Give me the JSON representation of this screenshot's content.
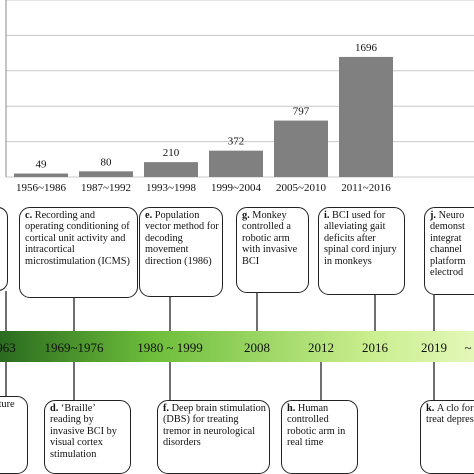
{
  "chart_data": {
    "type": "bar",
    "categories": [
      "1956~1986",
      "1987~1992",
      "1993~1998",
      "1999~2004",
      "2005~2010",
      "2011~2016"
    ],
    "values": [
      49,
      80,
      210,
      372,
      797,
      1696
    ],
    "title": "",
    "xlabel": "",
    "ylabel": "",
    "ylim": [
      0,
      2500
    ],
    "grid": true,
    "bar_color": "#808080"
  },
  "timeline": {
    "band_gradient": [
      "#2a6b1f",
      "#6dbd3a",
      "#c9ee8e",
      "#e3f7b8"
    ],
    "years": [
      {
        "label": "963"
      },
      {
        "label": "1969~1976"
      },
      {
        "label": "1980 ~ 1999"
      },
      {
        "label": "2008"
      },
      {
        "label": "2012"
      },
      {
        "label": "2016"
      },
      {
        "label": "2019"
      },
      {
        "label": "~"
      }
    ],
    "top_events": [
      {
        "letter": "",
        "text": ""
      },
      {
        "letter": "c.",
        "text": "Recording and operating conditioning of cortical unit activity and intracortical microstimulation (ICMS)"
      },
      {
        "letter": "e.",
        "text": "Population vector method for decoding movement direction (1986)"
      },
      {
        "letter": "g.",
        "text": "Monkey controlled a robotic arm with invasive BCI"
      },
      {
        "letter": "i.",
        "text": "BCI used for alleviating gait deficits after spinal cord injury in monkeys"
      },
      {
        "letter": "j.",
        "text": "Neuro demonst integrat channel platform electrod"
      }
    ],
    "bottom_events": [
      {
        "letter": "",
        "text": "cture"
      },
      {
        "letter": "d.",
        "text": "‘Braille’ reading by invasive BCI by visual cortex stimulation"
      },
      {
        "letter": "f.",
        "text": "Deep brain stimulation (DBS) for treating tremor in neurological disorders"
      },
      {
        "letter": "h.",
        "text": "Human controlled robotic arm in real time"
      },
      {
        "letter": "k.",
        "text": "A clo for treat depressi"
      }
    ]
  }
}
